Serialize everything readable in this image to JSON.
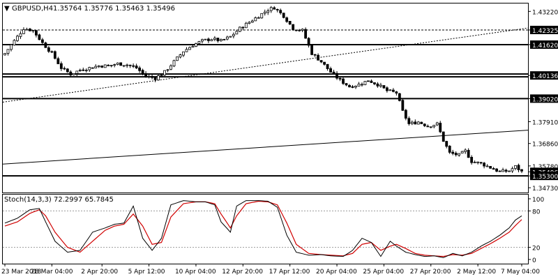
{
  "header": {
    "symbol_tf": "GBPUSD,H4",
    "ohlc": "1.35764 1.35776 1.35463 1.35496"
  },
  "stoch_header": "Stoch(14,3,3) 72.2997 65.7845",
  "chart_data": {
    "type": "candlestick",
    "price_axis": {
      "ylim": [
        1.345,
        1.436
      ],
      "ticks": [
        "1.43220",
        "1.42325",
        "1.41620",
        "1.40136",
        "1.39020",
        "1.37910",
        "1.36860",
        "1.35780",
        "1.35496",
        "1.35300",
        "1.34730"
      ],
      "tick_values": [
        1.4322,
        1.42325,
        1.4162,
        1.40136,
        1.3902,
        1.3791,
        1.3686,
        1.3578,
        1.35496,
        1.353,
        1.3473
      ]
    },
    "horizontal_levels": [
      {
        "value": 1.42325,
        "label": "1.42325",
        "style": "dashed"
      },
      {
        "value": 1.4162,
        "label": "1.41620",
        "style": "solid"
      },
      {
        "value": 1.40136,
        "label": "1.40136",
        "style": "double"
      },
      {
        "value": 1.3902,
        "label": "1.39020",
        "style": "solid"
      },
      {
        "value": 1.353,
        "label": "1.35300",
        "style": "solid"
      }
    ],
    "current_price": {
      "value": 1.35496,
      "label": "1.35496"
    },
    "trendlines": [
      {
        "style": "dotted",
        "from_index": 0,
        "from_value": 1.3885,
        "to_index": 165,
        "to_value": 1.4242
      },
      {
        "style": "solid",
        "from_index": 0,
        "from_value": 1.3587,
        "to_index": 165,
        "to_value": 1.375
      }
    ],
    "time_axis": [
      "23 Mar 2018",
      "28 Mar 04:00",
      "2 Apr 20:00",
      "5 Apr 12:00",
      "10 Apr 04:00",
      "12 Apr 20:00",
      "17 Apr 12:00",
      "20 Apr 04:00",
      "25 Apr 04:00",
      "27 Apr 20:00",
      "2 May 12:00",
      "7 May 04:00"
    ],
    "time_axis_positions": [
      0,
      15,
      31,
      46,
      61,
      76,
      91,
      106,
      121,
      136,
      151,
      165
    ],
    "close_anchors": [
      [
        0,
        1.412
      ],
      [
        3,
        1.418
      ],
      [
        6,
        1.424
      ],
      [
        9,
        1.423
      ],
      [
        12,
        1.417
      ],
      [
        15,
        1.412
      ],
      [
        18,
        1.405
      ],
      [
        21,
        1.402
      ],
      [
        24,
        1.404
      ],
      [
        27,
        1.405
      ],
      [
        30,
        1.406
      ],
      [
        33,
        1.406
      ],
      [
        36,
        1.407
      ],
      [
        39,
        1.4065
      ],
      [
        42,
        1.405
      ],
      [
        45,
        1.401
      ],
      [
        48,
        1.4
      ],
      [
        51,
        1.403
      ],
      [
        54,
        1.408
      ],
      [
        57,
        1.413
      ],
      [
        60,
        1.416
      ],
      [
        63,
        1.418
      ],
      [
        66,
        1.419
      ],
      [
        69,
        1.418
      ],
      [
        72,
        1.42
      ],
      [
        75,
        1.424
      ],
      [
        78,
        1.427
      ],
      [
        81,
        1.43
      ],
      [
        84,
        1.433
      ],
      [
        86,
        1.434
      ],
      [
        89,
        1.43
      ],
      [
        92,
        1.424
      ],
      [
        95,
        1.423
      ],
      [
        98,
        1.412
      ],
      [
        101,
        1.408
      ],
      [
        104,
        1.403
      ],
      [
        107,
        1.399
      ],
      [
        110,
        1.396
      ],
      [
        113,
        1.397
      ],
      [
        116,
        1.399
      ],
      [
        119,
        1.397
      ],
      [
        122,
        1.394
      ],
      [
        125,
        1.393
      ],
      [
        127,
        1.384
      ],
      [
        129,
        1.378
      ],
      [
        132,
        1.379
      ],
      [
        135,
        1.377
      ],
      [
        138,
        1.378
      ],
      [
        140,
        1.37
      ],
      [
        142,
        1.364
      ],
      [
        145,
        1.363
      ],
      [
        147,
        1.365
      ],
      [
        149,
        1.36
      ],
      [
        152,
        1.359
      ],
      [
        155,
        1.357
      ],
      [
        158,
        1.355
      ],
      [
        161,
        1.3555
      ],
      [
        163,
        1.3575
      ],
      [
        165,
        1.355
      ]
    ],
    "candle_count": 166,
    "stochastic": {
      "label": "Stoch(14,3,3) 72.2997 65.7845",
      "ylim": [
        0,
        100
      ],
      "levels": [
        {
          "value": 100,
          "label": "100"
        },
        {
          "value": 80,
          "label": "80"
        },
        {
          "value": 20,
          "label": "20"
        },
        {
          "value": 0,
          "label": "0"
        }
      ],
      "k_color": "#000000",
      "d_color": "#d00000",
      "k_anchors": [
        [
          0,
          60
        ],
        [
          4,
          68
        ],
        [
          8,
          82
        ],
        [
          11,
          84
        ],
        [
          13,
          62
        ],
        [
          16,
          30
        ],
        [
          20,
          12
        ],
        [
          24,
          15
        ],
        [
          28,
          45
        ],
        [
          32,
          52
        ],
        [
          35,
          58
        ],
        [
          38,
          60
        ],
        [
          41,
          88
        ],
        [
          44,
          35
        ],
        [
          47,
          15
        ],
        [
          50,
          35
        ],
        [
          53,
          90
        ],
        [
          57,
          97
        ],
        [
          61,
          95
        ],
        [
          64,
          95
        ],
        [
          67,
          90
        ],
        [
          69,
          62
        ],
        [
          72,
          45
        ],
        [
          74,
          88
        ],
        [
          77,
          97
        ],
        [
          81,
          97
        ],
        [
          84,
          96
        ],
        [
          87,
          86
        ],
        [
          90,
          40
        ],
        [
          93,
          12
        ],
        [
          97,
          7
        ],
        [
          101,
          8
        ],
        [
          104,
          6
        ],
        [
          108,
          5
        ],
        [
          111,
          15
        ],
        [
          114,
          35
        ],
        [
          117,
          28
        ],
        [
          120,
          5
        ],
        [
          123,
          30
        ],
        [
          125,
          22
        ],
        [
          128,
          12
        ],
        [
          131,
          8
        ],
        [
          134,
          5
        ],
        [
          137,
          6
        ],
        [
          140,
          3
        ],
        [
          143,
          10
        ],
        [
          146,
          6
        ],
        [
          149,
          12
        ],
        [
          152,
          22
        ],
        [
          155,
          30
        ],
        [
          158,
          40
        ],
        [
          161,
          52
        ],
        [
          163,
          65
        ],
        [
          165,
          72
        ]
      ],
      "d_anchors": [
        [
          0,
          55
        ],
        [
          4,
          62
        ],
        [
          8,
          76
        ],
        [
          11,
          82
        ],
        [
          13,
          72
        ],
        [
          16,
          45
        ],
        [
          20,
          20
        ],
        [
          24,
          12
        ],
        [
          28,
          30
        ],
        [
          32,
          48
        ],
        [
          35,
          55
        ],
        [
          38,
          58
        ],
        [
          41,
          75
        ],
        [
          44,
          55
        ],
        [
          47,
          25
        ],
        [
          50,
          28
        ],
        [
          53,
          70
        ],
        [
          57,
          92
        ],
        [
          61,
          95
        ],
        [
          64,
          95
        ],
        [
          67,
          92
        ],
        [
          69,
          75
        ],
        [
          72,
          52
        ],
        [
          74,
          72
        ],
        [
          77,
          92
        ],
        [
          81,
          96
        ],
        [
          84,
          95
        ],
        [
          87,
          90
        ],
        [
          90,
          60
        ],
        [
          93,
          25
        ],
        [
          97,
          10
        ],
        [
          101,
          8
        ],
        [
          104,
          7
        ],
        [
          108,
          6
        ],
        [
          111,
          10
        ],
        [
          114,
          25
        ],
        [
          117,
          28
        ],
        [
          120,
          15
        ],
        [
          123,
          22
        ],
        [
          125,
          25
        ],
        [
          128,
          18
        ],
        [
          131,
          10
        ],
        [
          134,
          7
        ],
        [
          137,
          6
        ],
        [
          140,
          5
        ],
        [
          143,
          8
        ],
        [
          146,
          7
        ],
        [
          149,
          10
        ],
        [
          152,
          18
        ],
        [
          155,
          26
        ],
        [
          158,
          35
        ],
        [
          161,
          45
        ],
        [
          163,
          56
        ],
        [
          165,
          65.8
        ]
      ]
    }
  },
  "colors": {
    "bull_fill": "#ffffff",
    "bear_fill": "#000000",
    "candle_line": "#000000",
    "grid": "#000000",
    "price_label_bg": "#000000",
    "price_label_text": "#ffffff"
  }
}
